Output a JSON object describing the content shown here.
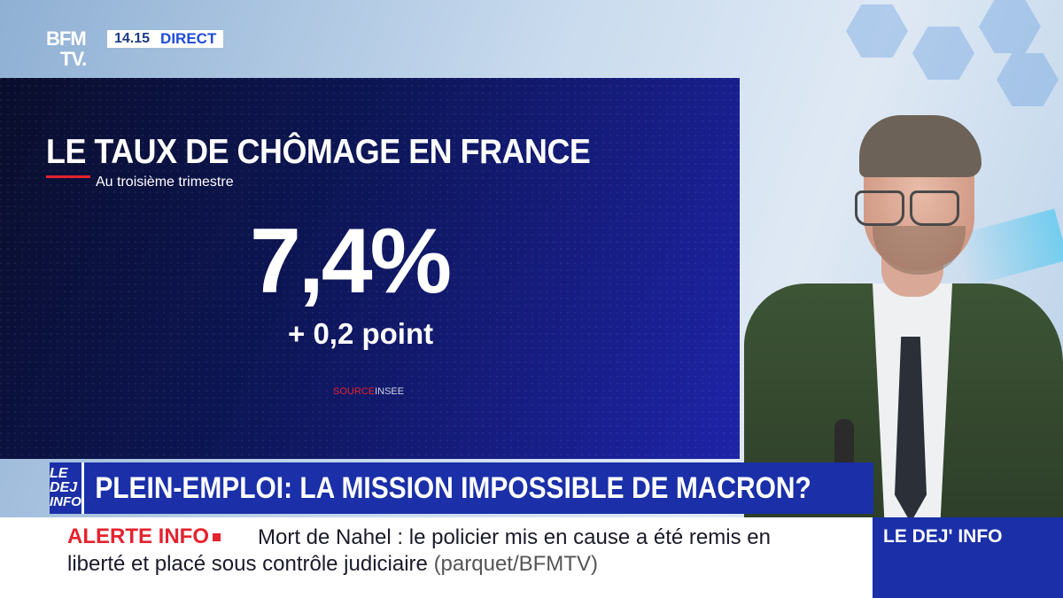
{
  "brand": {
    "logo_line1": "BFM",
    "logo_line2": "TV.",
    "time": "14.15",
    "live_label": "DIRECT"
  },
  "graphic": {
    "title": "LE TAUX DE CHÔMAGE EN FRANCE",
    "subtitle": "Au troisième trimestre",
    "value": "7,4%",
    "change": "+ 0,2 point",
    "source_label": "SOURCE",
    "source_name": "INSEE",
    "accent_color": "#e5232f"
  },
  "headline": {
    "show_logo_line1": "LE DEJ",
    "show_logo_line2": "INFO",
    "text": "PLEIN-EMPLOI: LA MISSION IMPOSSIBLE DE MACRON?"
  },
  "ticker": {
    "label": "ALERTE INFO",
    "line1": "Mort de Nahel : le policier mis en cause a été remis en",
    "line2": "liberté et placé sous contrôle judiciaire",
    "source": "(parquet/BFMTV)"
  },
  "program": {
    "name": "LE DEJ' INFO"
  },
  "colors": {
    "brand_blue": "#1a2fa8",
    "alert_red": "#e5232f"
  }
}
